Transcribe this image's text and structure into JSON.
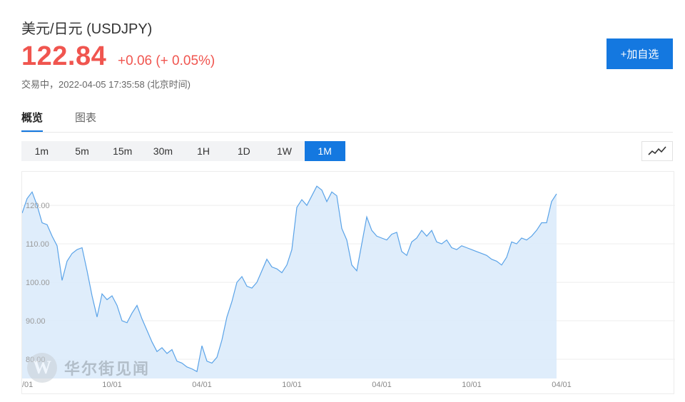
{
  "header": {
    "title": "美元/日元 (USDJPY)",
    "price": "122.84",
    "change": "+0.06 (+ 0.05%)",
    "status": "交易中，2022-04-05 17:35:58 (北京时间)",
    "follow_label": "+加自选"
  },
  "tabs": [
    {
      "label": "概览",
      "active": true
    },
    {
      "label": "图表",
      "active": false
    }
  ],
  "ranges": [
    {
      "label": "1m",
      "active": false
    },
    {
      "label": "5m",
      "active": false
    },
    {
      "label": "15m",
      "active": false
    },
    {
      "label": "30m",
      "active": false
    },
    {
      "label": "1H",
      "active": false
    },
    {
      "label": "1D",
      "active": false
    },
    {
      "label": "1W",
      "active": false
    },
    {
      "label": "1M",
      "active": true
    }
  ],
  "watermark": {
    "logo": "W",
    "text": "华尔街见闻"
  },
  "colors": {
    "accent": "#1478e0",
    "price_up": "#f0554f",
    "line": "#5aa3e8",
    "fill": "#dcebfb"
  },
  "chart_data": {
    "type": "area",
    "ylim": [
      75,
      128
    ],
    "y_ticks": [
      80,
      90,
      100,
      110,
      120
    ],
    "y_tick_labels": [
      "80.00",
      "90.00",
      "100.00",
      "110.00",
      "120.00"
    ],
    "x_tick_labels": [
      {
        "label": "10/01",
        "i": 18
      },
      {
        "label": "04/01",
        "i": 36
      },
      {
        "label": "10/01",
        "i": 54
      },
      {
        "label": "04/01",
        "i": 72
      },
      {
        "label": "10/01",
        "i": 90
      },
      {
        "label": "04/01",
        "i": 108
      }
    ],
    "x_tick_label_left": "/01",
    "grid": true,
    "values": [
      118.0,
      121.8,
      123.5,
      120.0,
      115.5,
      115.0,
      112.0,
      109.5,
      100.5,
      105.5,
      107.5,
      108.5,
      109.0,
      103.0,
      96.5,
      91.0,
      97.0,
      95.5,
      96.5,
      94.0,
      90.0,
      89.5,
      92.0,
      94.0,
      90.5,
      87.5,
      84.5,
      82.0,
      83.0,
      81.5,
      82.5,
      79.5,
      79.0,
      78.0,
      77.5,
      76.8,
      83.5,
      79.5,
      79.0,
      80.5,
      85.0,
      91.0,
      95.0,
      100.0,
      101.5,
      99.0,
      98.5,
      100.0,
      103.0,
      106.0,
      104.0,
      103.5,
      102.5,
      104.5,
      108.5,
      119.5,
      121.5,
      120.0,
      122.5,
      125.0,
      124.0,
      121.0,
      123.5,
      122.5,
      114.0,
      111.0,
      104.5,
      103.0,
      110.0,
      117.0,
      113.5,
      112.0,
      111.5,
      111.0,
      112.5,
      113.0,
      108.0,
      107.0,
      110.5,
      111.5,
      113.5,
      112.0,
      113.5,
      110.5,
      110.0,
      111.0,
      109.0,
      108.5,
      109.5,
      109.0,
      108.5,
      108.0,
      107.5,
      107.0,
      106.0,
      105.5,
      104.5,
      106.5,
      110.5,
      110.0,
      111.5,
      111.0,
      112.0,
      113.5,
      115.5,
      115.5,
      121.0,
      123.0
    ]
  }
}
